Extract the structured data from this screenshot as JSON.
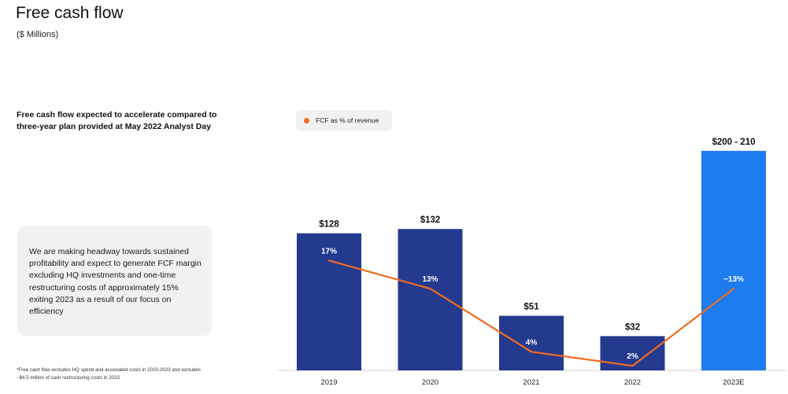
{
  "header": {
    "title": "Free cash flow",
    "subtitle": "($ Millions)"
  },
  "sidebar": {
    "headline": "Free cash flow expected to accelerate compared to three-year plan provided at May 2022 Analyst Day",
    "callout": "We are making headway towards sustained profitability and expect to generate FCF margin excluding HQ investments and one-time restructuring costs of approximately 15% exiting 2023 as a result of our focus on efficiency",
    "footnote": "*Free cash flow excludes HQ spend and associated costs in 2020-2023 and excludes ~$4.5 million of cash restructuring costs in 2023."
  },
  "legend": {
    "label": "FCF as % of revenue",
    "dot_color": "#f26b1d"
  },
  "chart_data": {
    "type": "bar",
    "categories": [
      "2019",
      "2020",
      "2021",
      "2022",
      "2023E"
    ],
    "series": [
      {
        "values": [
          128,
          132,
          51,
          32,
          205
        ],
        "labels": [
          "$128",
          "$132",
          "$51",
          "$32",
          "$200 - 210"
        ],
        "colors": [
          "#243a8f",
          "#243a8f",
          "#243a8f",
          "#243a8f",
          "#1f7bf0"
        ]
      },
      {
        "name": "FCF as % of revenue",
        "type": "line",
        "values": [
          17,
          13,
          4,
          2,
          13
        ],
        "labels": [
          "17%",
          "13%",
          "4%",
          "2%",
          "~13%"
        ],
        "color": "#f26b1d"
      }
    ],
    "ylim": [
      0,
      210
    ],
    "pct_ylim": [
      0,
      25
    ],
    "grid": false,
    "legend_position": "top-left"
  }
}
